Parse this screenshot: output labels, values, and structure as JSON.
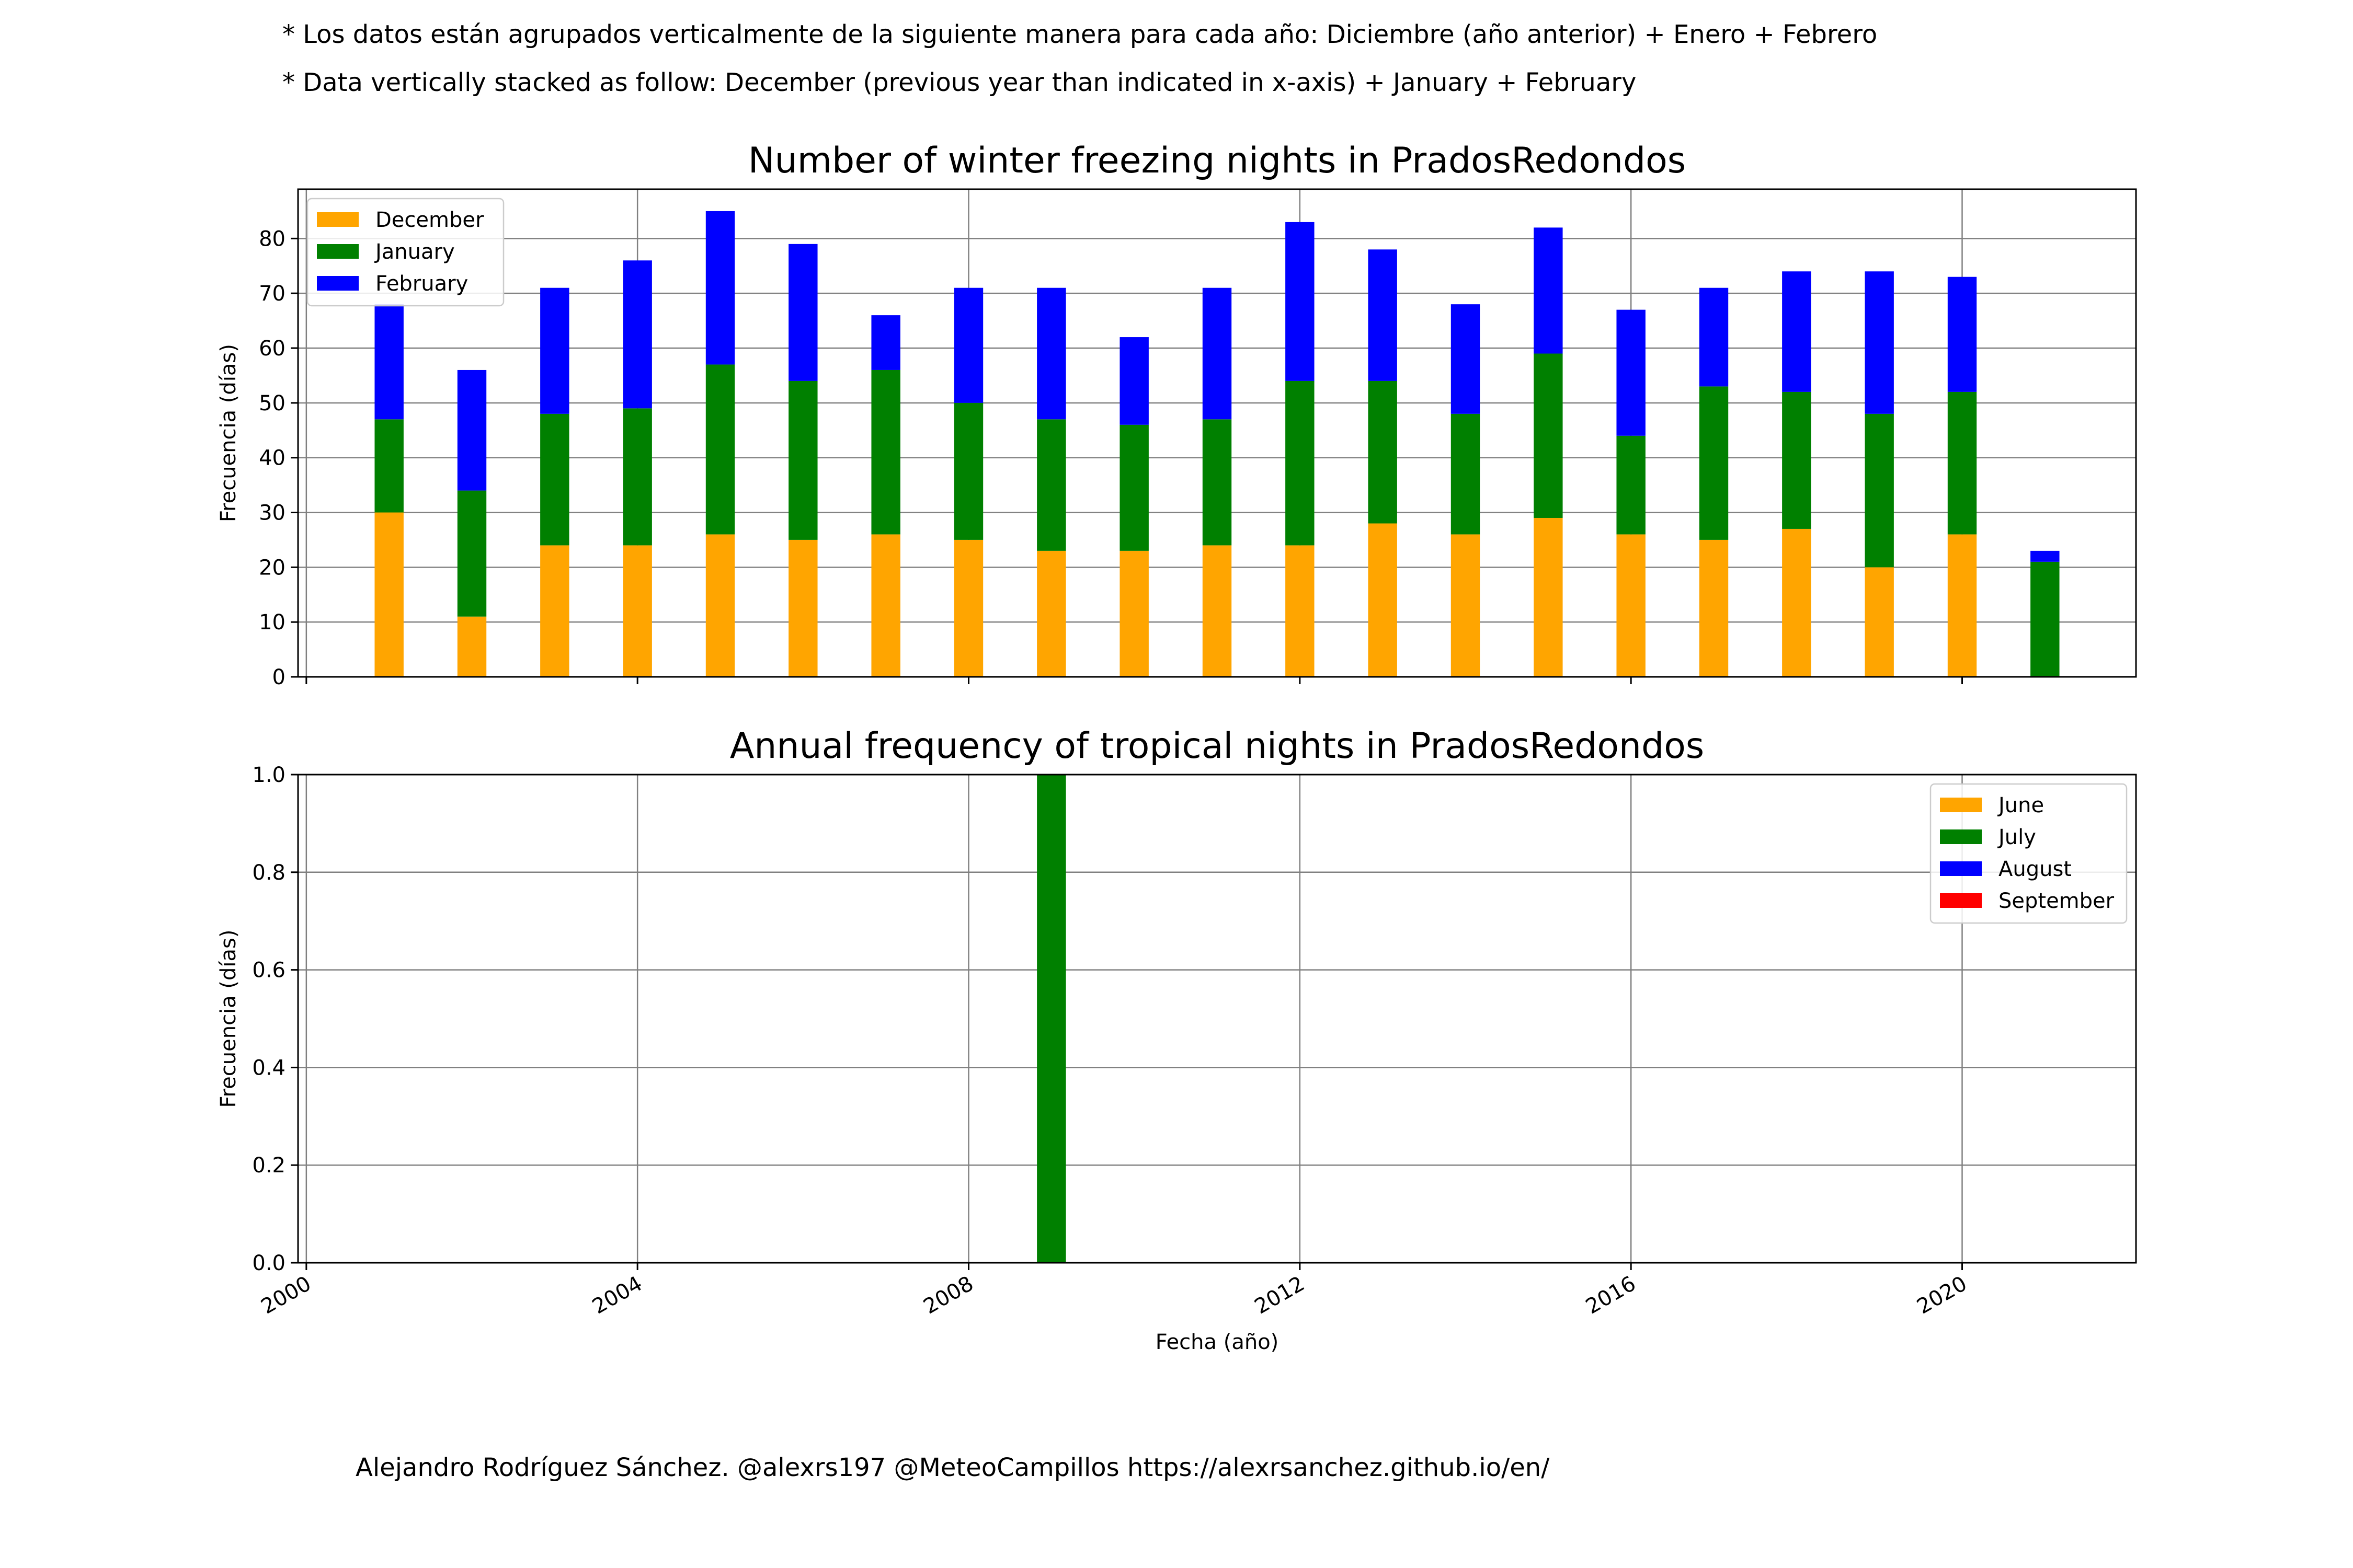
{
  "notes": {
    "line1": "* Los datos están agrupados verticalmente de la siguiente manera para cada año: Diciembre (año anterior) + Enero  + Febrero",
    "line2": "* Data vertically stacked as follow: December (previous year than indicated in x-axis) + January  + February"
  },
  "credit": "Alejandro Rodríguez Sánchez. @alexrs197 @MeteoCampillos   https://alexrsanchez.github.io/en/",
  "chart_data": [
    {
      "type": "bar",
      "stacked": true,
      "title": "Number of winter freezing nights in PradosRedondos",
      "xlabel": "",
      "ylabel": "Frecuencia (días)",
      "categories": [
        2001,
        2002,
        2003,
        2004,
        2005,
        2006,
        2007,
        2008,
        2009,
        2010,
        2011,
        2012,
        2013,
        2014,
        2015,
        2016,
        2017,
        2018,
        2019,
        2020,
        2021
      ],
      "series": [
        {
          "name": "December",
          "color": "#ffa500",
          "values": [
            30,
            11,
            24,
            24,
            26,
            25,
            26,
            25,
            23,
            23,
            24,
            24,
            28,
            26,
            29,
            26,
            25,
            27,
            20,
            26,
            0
          ]
        },
        {
          "name": "January",
          "color": "#008000",
          "values": [
            17,
            23,
            24,
            25,
            31,
            29,
            30,
            25,
            24,
            23,
            23,
            30,
            26,
            22,
            30,
            18,
            28,
            25,
            28,
            26,
            21
          ]
        },
        {
          "name": "February",
          "color": "#0000ff",
          "values": [
            21,
            22,
            23,
            27,
            28,
            25,
            10,
            21,
            24,
            16,
            24,
            29,
            24,
            20,
            23,
            23,
            18,
            22,
            26,
            21,
            2
          ]
        }
      ],
      "xlim": [
        1999.9,
        2022.1
      ],
      "ylim": [
        0,
        89
      ],
      "xticks": [
        2000,
        2004,
        2008,
        2012,
        2016,
        2020
      ],
      "yticks": [
        0,
        10,
        20,
        30,
        40,
        50,
        60,
        70,
        80
      ],
      "grid": true,
      "legend": "top-left"
    },
    {
      "type": "bar",
      "stacked": true,
      "title": "Annual frequency of tropical nights in PradosRedondos",
      "xlabel": "Fecha (año)",
      "ylabel": "Frecuencia (días)",
      "categories": [
        2009
      ],
      "series": [
        {
          "name": "June",
          "color": "#ffa500",
          "values": [
            0
          ]
        },
        {
          "name": "July",
          "color": "#008000",
          "values": [
            1
          ]
        },
        {
          "name": "August",
          "color": "#0000ff",
          "values": [
            0
          ]
        },
        {
          "name": "September",
          "color": "#ff0000",
          "values": [
            0
          ]
        }
      ],
      "xlim": [
        1999.9,
        2022.1
      ],
      "ylim": [
        0,
        1
      ],
      "xticks": [
        2000,
        2004,
        2008,
        2012,
        2016,
        2020
      ],
      "yticks": [
        "0.0",
        "0.2",
        "0.4",
        "0.6",
        "0.8",
        "1.0"
      ],
      "grid": true,
      "legend": "top-right"
    }
  ]
}
